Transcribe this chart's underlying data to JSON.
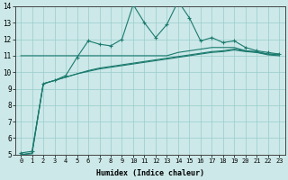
{
  "xlabel": "Humidex (Indice chaleur)",
  "background_color": "#cce8e8",
  "grid_color": "#99cccc",
  "line_color": "#1a7a6e",
  "x": [
    0,
    1,
    2,
    3,
    4,
    5,
    6,
    7,
    8,
    9,
    10,
    11,
    12,
    13,
    14,
    15,
    16,
    17,
    18,
    19,
    20,
    21,
    22,
    23
  ],
  "series1": [
    5.1,
    5.2,
    9.3,
    9.5,
    9.8,
    10.9,
    11.9,
    11.7,
    11.6,
    12.0,
    14.1,
    13.0,
    12.1,
    12.9,
    14.3,
    13.3,
    11.9,
    12.1,
    11.8,
    11.9,
    11.5,
    11.3,
    11.2,
    11.1
  ],
  "series2": [
    11.0,
    11.0,
    11.0,
    11.0,
    11.0,
    11.0,
    11.0,
    11.0,
    11.0,
    11.0,
    11.0,
    11.0,
    11.0,
    11.0,
    11.2,
    11.3,
    11.4,
    11.5,
    11.5,
    11.5,
    11.3,
    11.2,
    11.1,
    11.1
  ],
  "series3": [
    5.0,
    5.1,
    9.3,
    9.5,
    9.7,
    9.9,
    10.1,
    10.25,
    10.35,
    10.45,
    10.55,
    10.65,
    10.75,
    10.85,
    10.95,
    11.05,
    11.15,
    11.25,
    11.3,
    11.4,
    11.3,
    11.25,
    11.1,
    11.05
  ],
  "series4": [
    5.0,
    5.05,
    9.3,
    9.5,
    9.7,
    9.9,
    10.05,
    10.2,
    10.3,
    10.4,
    10.5,
    10.6,
    10.7,
    10.8,
    10.9,
    11.0,
    11.1,
    11.2,
    11.25,
    11.35,
    11.25,
    11.2,
    11.05,
    11.0
  ],
  "ylim": [
    5,
    14
  ],
  "xlim_min": -0.5,
  "xlim_max": 23.5,
  "yticks": [
    5,
    6,
    7,
    8,
    9,
    10,
    11,
    12,
    13,
    14
  ],
  "xticks": [
    0,
    1,
    2,
    3,
    4,
    5,
    6,
    7,
    8,
    9,
    10,
    11,
    12,
    13,
    14,
    15,
    16,
    17,
    18,
    19,
    20,
    21,
    22,
    23
  ]
}
